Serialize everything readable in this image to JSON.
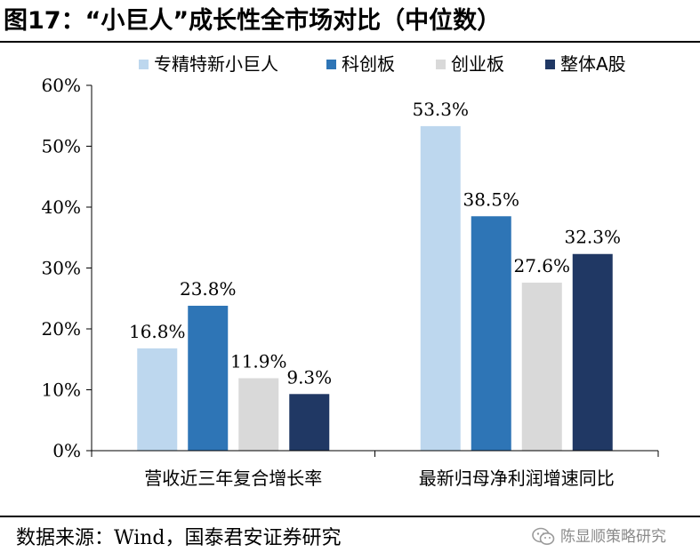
{
  "title": "图17：“小巨人”成长性全市场对比（中位数）",
  "source": "数据来源：Wind，国泰君安证券研究",
  "watermark": "陈显顺策略研究",
  "watermark_icon": "wechat-icon",
  "chart_data": {
    "type": "bar",
    "title": "",
    "xlabel": "",
    "ylabel": "",
    "ylim": [
      0,
      60
    ],
    "yticks": [
      "0%",
      "10%",
      "20%",
      "30%",
      "40%",
      "50%",
      "60%"
    ],
    "grid": false,
    "legend_position": "top",
    "categories": [
      "营收近三年复合增长率",
      "最新归母净利润增速同比"
    ],
    "series": [
      {
        "name": "专精特新小巨人",
        "color": "#bdd7ee",
        "values": [
          16.8,
          53.3
        ],
        "labels": [
          "16.8%",
          "53.3%"
        ]
      },
      {
        "name": "科创板",
        "color": "#2e75b6",
        "values": [
          23.8,
          38.5
        ],
        "labels": [
          "23.8%",
          "38.5%"
        ]
      },
      {
        "name": "创业板",
        "color": "#d9d9d9",
        "values": [
          11.9,
          27.6
        ],
        "labels": [
          "11.9%",
          "27.6%"
        ]
      },
      {
        "name": "整体A股",
        "color": "#203864",
        "values": [
          9.3,
          32.3
        ],
        "labels": [
          "9.3%",
          "32.3%"
        ]
      }
    ]
  }
}
